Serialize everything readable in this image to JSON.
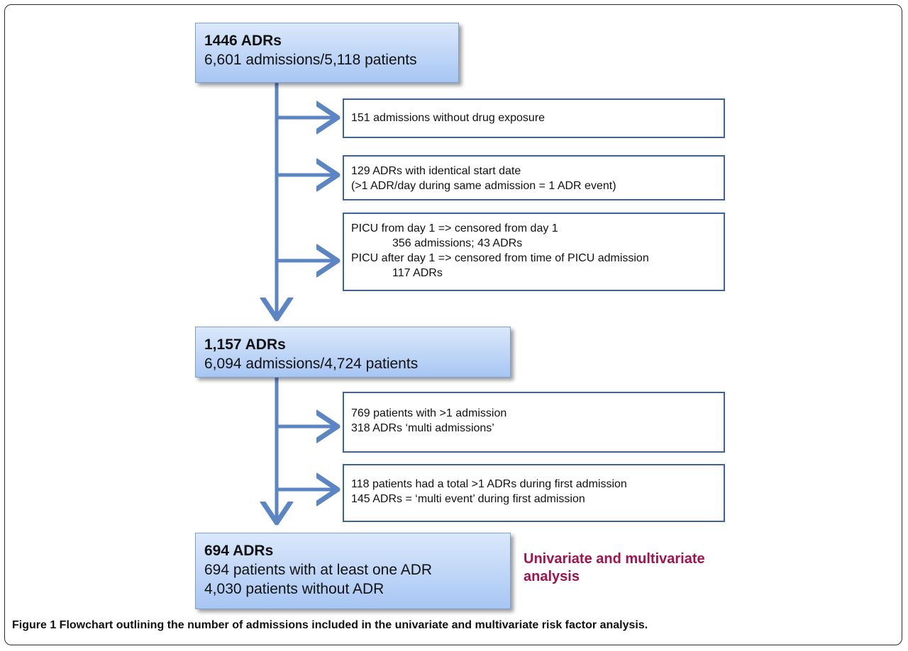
{
  "boxes": {
    "b1": {
      "title": "1446 ADRs",
      "lines": [
        "6,601 admissions/5,118 patients"
      ]
    },
    "b2": {
      "title": "1,157 ADRs",
      "lines": [
        "6,094 admissions/4,724 patients"
      ]
    },
    "b3": {
      "title": "694 ADRs",
      "lines": [
        "694 patients with at least one ADR",
        "4,030 patients without ADR"
      ]
    }
  },
  "exclusions": {
    "e1": {
      "lines": [
        "151 admissions without drug exposure"
      ]
    },
    "e2": {
      "lines": [
        "129 ADRs with identical start date",
        "(>1 ADR/day during same admission = 1 ADR event)"
      ]
    },
    "e3": {
      "lines": [
        "PICU from day 1 => censored from day 1",
        "356 admissions; 43 ADRs",
        "PICU after day 1 => censored from time of PICU admission",
        "117 ADRs"
      ]
    },
    "e4": {
      "lines": [
        "769 patients with >1 admission",
        "318 ADRs ‘multi admissions’"
      ]
    },
    "e5": {
      "lines": [
        "118 patients had a total >1 ADRs during first admission",
        "145 ADRs = ‘multi event’ during first admission"
      ]
    }
  },
  "note": "Univariate and multivariate analysis",
  "caption": "Figure 1 Flowchart outlining the number of admissions included in the univariate and multivariate risk factor analysis.",
  "colors": {
    "arrow": "#5b85c3",
    "side_border": "#3c62a6",
    "note": "#a3124d"
  }
}
